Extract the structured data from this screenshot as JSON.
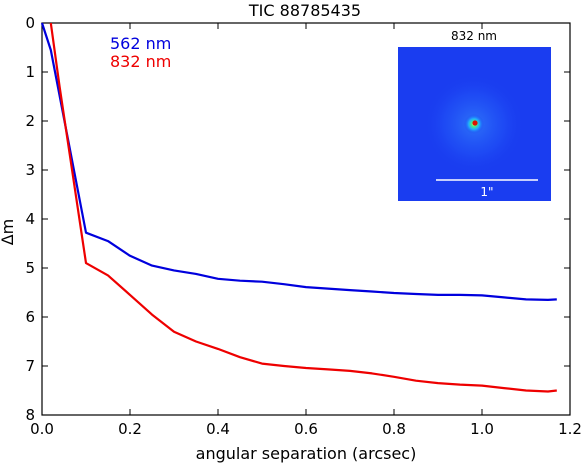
{
  "chart_data": {
    "type": "line",
    "title": "TIC 88785435",
    "xlabel": "angular separation (arcsec)",
    "ylabel": "Δm",
    "xlim": [
      0.0,
      1.2
    ],
    "ylim": [
      8,
      0
    ],
    "y_inverted": true,
    "x_ticks": [
      "0.0",
      "0.2",
      "0.4",
      "0.6",
      "0.8",
      "1.0",
      "1.2"
    ],
    "y_ticks": [
      "0",
      "1",
      "2",
      "3",
      "4",
      "5",
      "6",
      "7",
      "8"
    ],
    "grid": false,
    "legend_position": "top-left",
    "series": [
      {
        "name": "562 nm",
        "color": "#0000dd",
        "x": [
          0.0,
          0.02,
          0.1,
          0.15,
          0.2,
          0.25,
          0.3,
          0.35,
          0.4,
          0.45,
          0.5,
          0.55,
          0.6,
          0.65,
          0.7,
          0.75,
          0.8,
          0.85,
          0.9,
          0.95,
          1.0,
          1.05,
          1.1,
          1.15,
          1.17
        ],
        "y": [
          0.0,
          0.55,
          4.28,
          4.45,
          4.75,
          4.95,
          5.05,
          5.12,
          5.22,
          5.26,
          5.28,
          5.33,
          5.39,
          5.42,
          5.45,
          5.48,
          5.51,
          5.53,
          5.55,
          5.55,
          5.56,
          5.6,
          5.64,
          5.65,
          5.64
        ]
      },
      {
        "name": "832 nm",
        "color": "#ee0000",
        "x": [
          0.02,
          0.04,
          0.1,
          0.15,
          0.2,
          0.25,
          0.3,
          0.35,
          0.4,
          0.45,
          0.5,
          0.55,
          0.6,
          0.65,
          0.7,
          0.75,
          0.8,
          0.85,
          0.9,
          0.95,
          1.0,
          1.05,
          1.1,
          1.15,
          1.17
        ],
        "y": [
          0.0,
          1.3,
          4.9,
          5.15,
          5.55,
          5.95,
          6.3,
          6.5,
          6.65,
          6.82,
          6.95,
          7.0,
          7.04,
          7.07,
          7.1,
          7.15,
          7.22,
          7.3,
          7.35,
          7.38,
          7.4,
          7.45,
          7.5,
          7.52,
          7.5
        ]
      }
    ],
    "inset": {
      "label": "832 nm",
      "scale_label": "1\""
    }
  },
  "colors": {
    "inset_background": "#1a3df0",
    "blue_series": "#0000dd",
    "red_series": "#ee0000"
  }
}
